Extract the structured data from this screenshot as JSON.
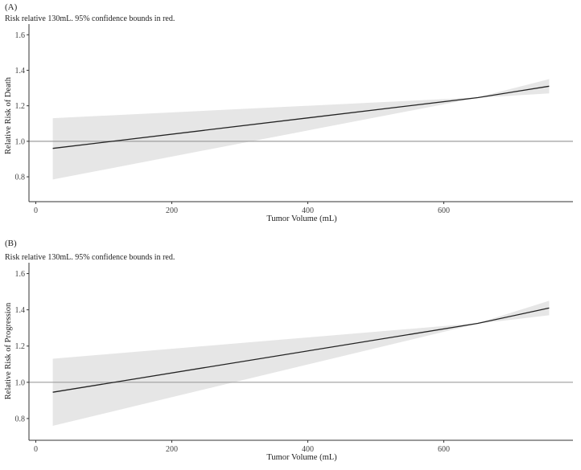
{
  "chart_data": [
    {
      "type": "line",
      "panel_label": "(A)",
      "subtitle": "Risk relative 130mL. 95% confidence bounds in red.",
      "xlabel": "Tumor Volume (mL)",
      "ylabel": "Relative Risk of Death",
      "xlim": [
        -10,
        790
      ],
      "ylim": [
        0.66,
        1.66
      ],
      "xticks": [
        0,
        200,
        400,
        600
      ],
      "yticks": [
        0.8,
        1.0,
        1.2,
        1.4,
        1.6
      ],
      "ytick_labels": [
        "0.8",
        "1.0",
        "1.2",
        "1.4",
        "1.6"
      ],
      "reference_line": 1.0,
      "grid": false,
      "series": [
        {
          "x": [
            25,
            650,
            755
          ],
          "values": [
            0.96,
            1.246,
            1.31
          ]
        }
      ],
      "band": {
        "x": [
          25,
          650,
          755
        ],
        "lower": [
          0.785,
          1.245,
          1.27
        ],
        "upper": [
          1.13,
          1.247,
          1.35
        ]
      },
      "colors": {
        "line": "#222222",
        "band": "#e6e6e6",
        "reference": "#9e9e9e",
        "axis": "#333333"
      }
    },
    {
      "type": "line",
      "panel_label": "(B)",
      "subtitle": "Risk relative 130mL. 95% confidence bounds in red.",
      "xlabel": "Tumor Volume (mL)",
      "ylabel": "Relative Risk of Progression",
      "xlim": [
        -10,
        790
      ],
      "ylim": [
        0.68,
        1.66
      ],
      "xticks": [
        0,
        200,
        400,
        600
      ],
      "yticks": [
        0.8,
        1.0,
        1.2,
        1.4,
        1.6
      ],
      "ytick_labels": [
        "0.8",
        "1.0",
        "1.2",
        "1.4",
        "1.6"
      ],
      "reference_line": 1.0,
      "grid": false,
      "series": [
        {
          "x": [
            25,
            650,
            755
          ],
          "values": [
            0.945,
            1.325,
            1.41
          ]
        }
      ],
      "band": {
        "x": [
          25,
          650,
          755
        ],
        "lower": [
          0.76,
          1.324,
          1.37
        ],
        "upper": [
          1.13,
          1.326,
          1.45
        ]
      },
      "colors": {
        "line": "#222222",
        "band": "#e6e6e6",
        "reference": "#9e9e9e",
        "axis": "#333333"
      }
    }
  ]
}
